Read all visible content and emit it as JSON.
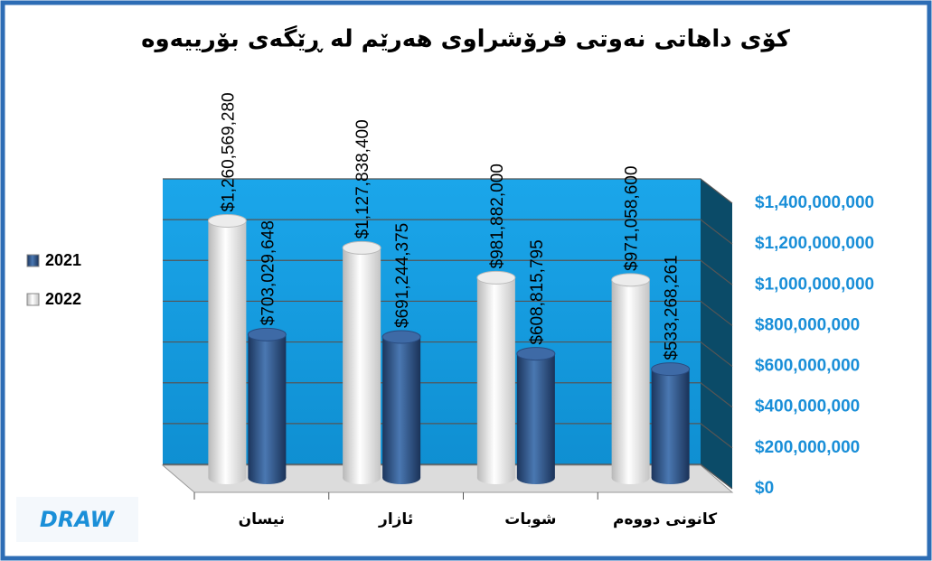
{
  "chart_data": {
    "type": "bar3d",
    "title": "کۆی داهاتی  نەوتی فرۆشراوی هەرێم لە ڕێگەی بۆرییەوە",
    "categories": [
      "نیسان",
      "ئازار",
      "شوبات",
      "کانونی دووەم"
    ],
    "series": [
      {
        "name": "2021",
        "color": "#2f5a94",
        "values": [
          703029648,
          691244375,
          608815795,
          533268261
        ],
        "value_labels": [
          "$703,029,648",
          "$691,244,375",
          "$608,815,795",
          "$533,268,261"
        ]
      },
      {
        "name": "2022",
        "color": "#ffffff",
        "values": [
          1260569280,
          1127838400,
          981882000,
          971058600
        ],
        "value_labels": [
          "$1,260,569,280",
          "$1,127,838,400",
          "$981,882,000",
          "$971,058,600"
        ]
      }
    ],
    "ylim": [
      0,
      1400000000
    ],
    "yticks": [
      {
        "value": 0,
        "label": "$0"
      },
      {
        "value": 200000000,
        "label": "$200,000,000"
      },
      {
        "value": 400000000,
        "label": "$400,000,000"
      },
      {
        "value": 600000000,
        "label": "$600,000,000"
      },
      {
        "value": 800000000,
        "label": "$800,000,000"
      },
      {
        "value": 1000000000,
        "label": "$1,000,000,000"
      },
      {
        "value": 1200000000,
        "label": "$1,200,000,000"
      },
      {
        "value": 1400000000,
        "label": "$1,400,000,000"
      }
    ],
    "grid": true,
    "legend": "left",
    "logo": "DRAW"
  }
}
